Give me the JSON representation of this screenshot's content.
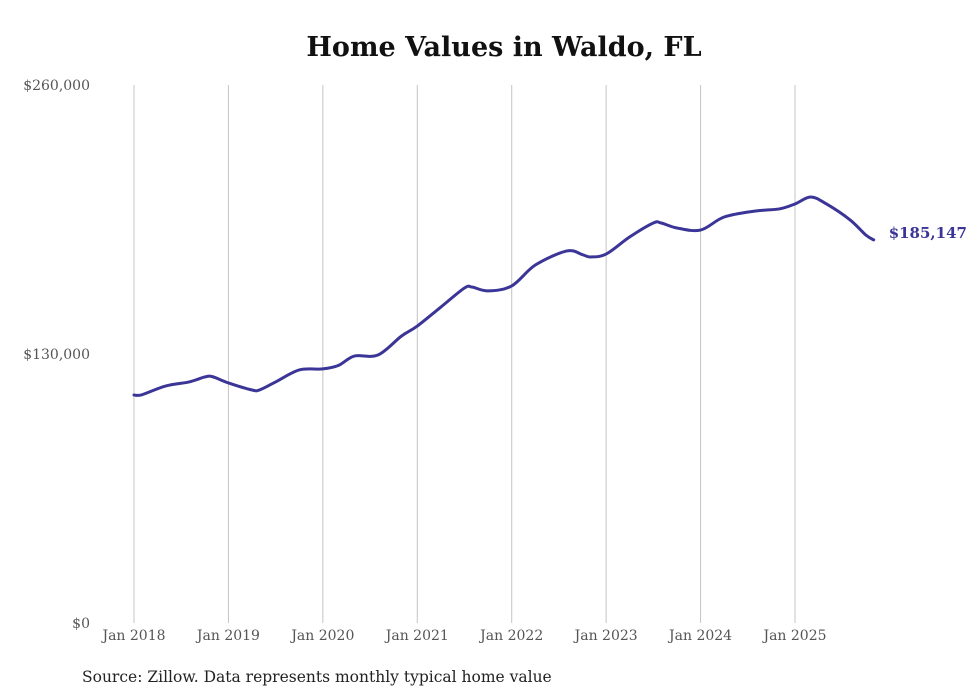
{
  "chart_data": {
    "type": "line",
    "title": "Home Values in Waldo, FL",
    "source": "Source: Zillow. Data represents monthly typical home value",
    "xlabel": "",
    "ylabel": "",
    "ylim": [
      0,
      260000
    ],
    "yticks": [
      {
        "value": 0,
        "label": "$0"
      },
      {
        "value": 130000,
        "label": "$130,000"
      },
      {
        "value": 260000,
        "label": "$260,000"
      }
    ],
    "xticks": [
      {
        "month": 0,
        "label": "Jan 2018"
      },
      {
        "month": 12,
        "label": "Jan 2019"
      },
      {
        "month": 24,
        "label": "Jan 2020"
      },
      {
        "month": 36,
        "label": "Jan 2021"
      },
      {
        "month": 48,
        "label": "Jan 2022"
      },
      {
        "month": 60,
        "label": "Jan 2023"
      },
      {
        "month": 72,
        "label": "Jan 2024"
      },
      {
        "month": 84,
        "label": "Jan 2025"
      }
    ],
    "x_unit": "months since Jan 2018",
    "grid": "vertical",
    "line_color": "#3a3596",
    "end_label": "$185,147",
    "series": [
      {
        "name": "Typical home value",
        "x": [
          0,
          1,
          4,
          7,
          9,
          10,
          12,
          15,
          16,
          18,
          21,
          24,
          26,
          28,
          31,
          34,
          36,
          39,
          42,
          43,
          45,
          48,
          51,
          55,
          57,
          58,
          60,
          63,
          66,
          67,
          69,
          72,
          75,
          79,
          82,
          84,
          86,
          88,
          91,
          93,
          94
        ],
        "values": [
          110200,
          110300,
          114500,
          116500,
          118900,
          119000,
          116000,
          112600,
          112700,
          116500,
          122300,
          122800,
          124500,
          129000,
          129500,
          138700,
          143500,
          152700,
          161900,
          162300,
          160500,
          162900,
          173000,
          179800,
          178000,
          176900,
          178300,
          186600,
          193300,
          193300,
          190900,
          189900,
          196200,
          199100,
          200100,
          202500,
          205900,
          202500,
          194800,
          187500,
          185147
        ]
      }
    ]
  }
}
